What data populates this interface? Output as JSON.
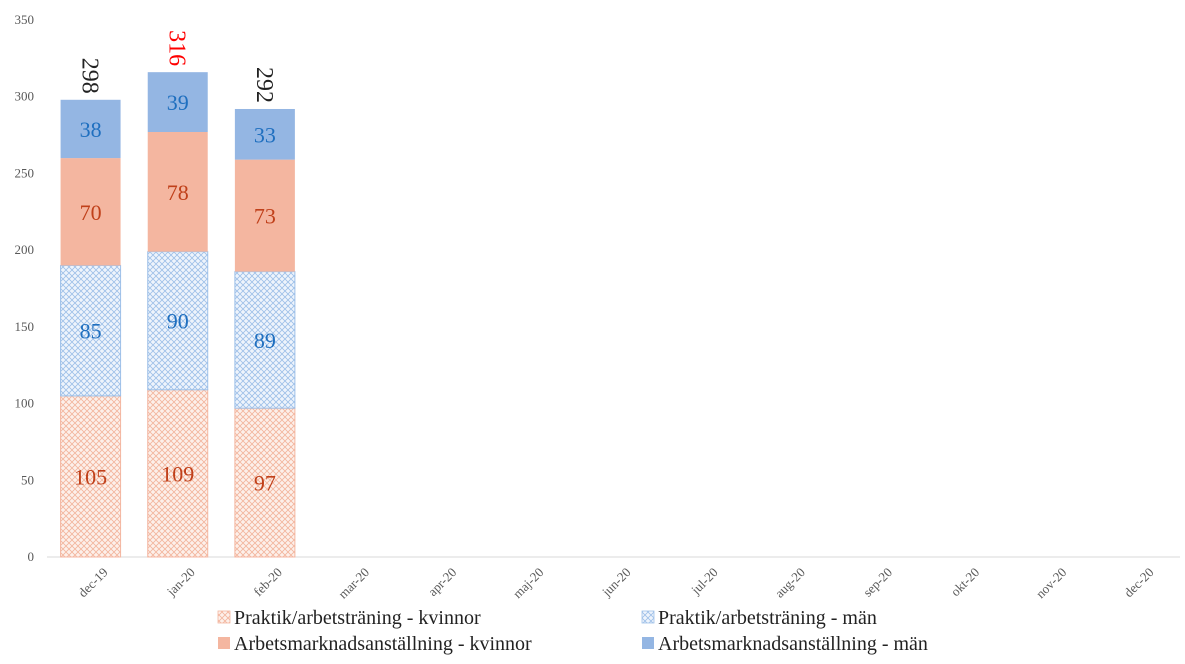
{
  "chart_data": {
    "type": "bar",
    "stacked": true,
    "categories": [
      "dec-19",
      "jan-20",
      "feb-20",
      "mar-20",
      "apr-20",
      "maj-20",
      "jun-20",
      "jul-20",
      "aug-20",
      "sep-20",
      "okt-20",
      "nov-20",
      "dec-20"
    ],
    "series": [
      {
        "name": "Praktik/arbetsträning - kvinnor",
        "values": [
          105,
          109,
          97,
          null,
          null,
          null,
          null,
          null,
          null,
          null,
          null,
          null,
          null
        ],
        "color": "#f4b6a0",
        "pattern": "crosshatch",
        "label_color": "#c0401a"
      },
      {
        "name": "Praktik/arbetsträning - män",
        "values": [
          85,
          90,
          89,
          null,
          null,
          null,
          null,
          null,
          null,
          null,
          null,
          null,
          null
        ],
        "color": "#9dc0e8",
        "pattern": "crosshatch",
        "label_color": "#1f6fbf"
      },
      {
        "name": "Arbetsmarknadsanställning - kvinnor",
        "values": [
          70,
          78,
          73,
          null,
          null,
          null,
          null,
          null,
          null,
          null,
          null,
          null,
          null
        ],
        "color": "#f4b6a0",
        "pattern": "solid",
        "label_color": "#c0401a"
      },
      {
        "name": "Arbetsmarknadsanställning - män",
        "values": [
          38,
          39,
          33,
          null,
          null,
          null,
          null,
          null,
          null,
          null,
          null,
          null,
          null
        ],
        "color": "#94b6e3",
        "pattern": "solid",
        "label_color": "#1f6fbf"
      }
    ],
    "totals": [
      {
        "text": "298",
        "color": "#222222"
      },
      {
        "text": "316",
        "color": "#ff0000"
      },
      {
        "text": "292",
        "color": "#222222"
      }
    ],
    "ylim": [
      0,
      350
    ],
    "yticks": [
      "0",
      "50",
      "100",
      "150",
      "200",
      "250",
      "300",
      "350"
    ],
    "grid": false,
    "legend_position": "bottom"
  }
}
